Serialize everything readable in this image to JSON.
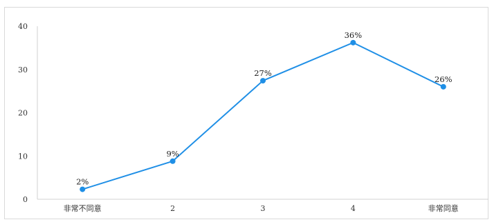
{
  "chart_data": {
    "type": "line",
    "title": "",
    "xlabel": "",
    "ylabel": "",
    "categories": [
      "非常不同意",
      "2",
      "3",
      "4",
      "非常同意"
    ],
    "series": [
      {
        "values": [
          2.3,
          8.8,
          27.4,
          36.2,
          26.0
        ],
        "data_labels": [
          "2%",
          "9%",
          "27%",
          "36%",
          "26%"
        ],
        "color": "#1f8fe6"
      }
    ],
    "ylim": [
      0,
      40
    ],
    "yticks": [
      "0",
      "10",
      "20",
      "30",
      "40"
    ],
    "grid": false,
    "legend": "none"
  }
}
